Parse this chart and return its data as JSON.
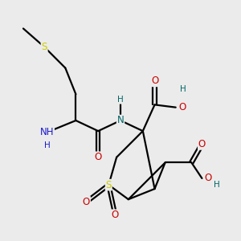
{
  "bg_color": "#ebebeb",
  "bond_color": "#000000",
  "bond_width": 1.6,
  "font_size": 8.5,
  "fig_size": [
    3.0,
    3.0
  ],
  "dpi": 100,
  "colors": {
    "S": "#cccc00",
    "O": "#cc0000",
    "N": "#006666",
    "H": "#006666",
    "NH2_N": "#1a1acc",
    "NH2_H": "#1a1acc"
  }
}
